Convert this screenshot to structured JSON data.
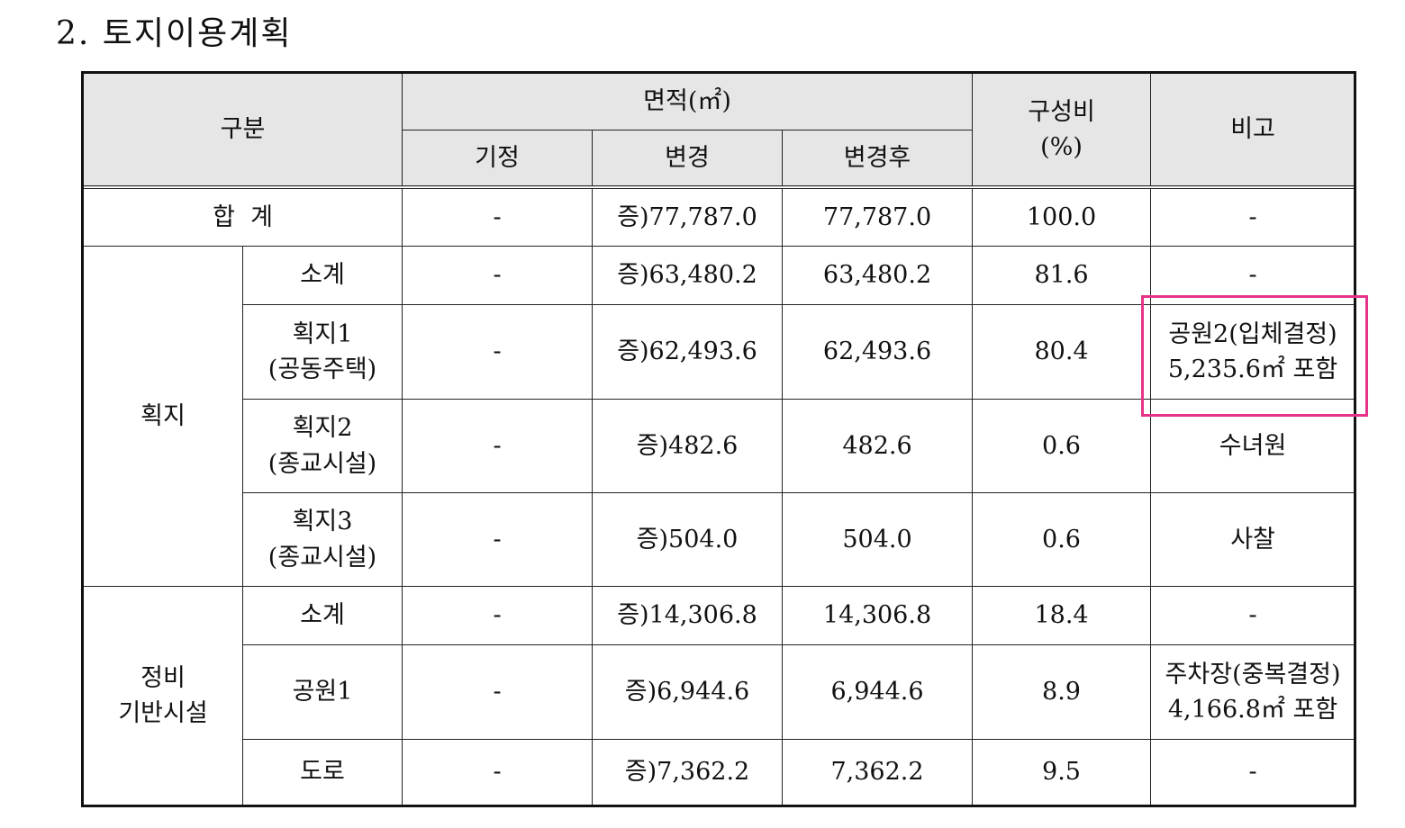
{
  "title": "2. 토지이용계획",
  "header": {
    "category": "구분",
    "area": "면적(㎡)",
    "existing": "기정",
    "change": "변경",
    "after": "변경후",
    "ratio": "구성비\n(%)",
    "remarks": "비고"
  },
  "total": {
    "label": "합  계",
    "existing": "-",
    "change": "증)77,787.0",
    "after": "77,787.0",
    "ratio": "100.0",
    "remarks": "-"
  },
  "lots": {
    "group": "획지",
    "rows": [
      {
        "name": "소계",
        "existing": "-",
        "change": "증)63,480.2",
        "after": "63,480.2",
        "ratio": "81.6",
        "remarks": "-"
      },
      {
        "name": "획지1\n(공동주택)",
        "existing": "-",
        "change": "증)62,493.6",
        "after": "62,493.6",
        "ratio": "80.4",
        "remarks": "공원2(입체결정)\n5,235.6㎡ 포함"
      },
      {
        "name": "획지2\n(종교시설)",
        "existing": "-",
        "change": "증)482.6",
        "after": "482.6",
        "ratio": "0.6",
        "remarks": "수녀원"
      },
      {
        "name": "획지3\n(종교시설)",
        "existing": "-",
        "change": "증)504.0",
        "after": "504.0",
        "ratio": "0.6",
        "remarks": "사찰"
      }
    ]
  },
  "infra": {
    "group": "정비\n기반시설",
    "rows": [
      {
        "name": "소계",
        "existing": "-",
        "change": "증)14,306.8",
        "after": "14,306.8",
        "ratio": "18.4",
        "remarks": "-"
      },
      {
        "name": "공원1",
        "existing": "-",
        "change": "증)6,944.6",
        "after": "6,944.6",
        "ratio": "8.9",
        "remarks": "주차장(중복결정)\n4,166.8㎡ 포함"
      },
      {
        "name": "도로",
        "existing": "-",
        "change": "증)7,362.2",
        "after": "7,362.2",
        "ratio": "9.5",
        "remarks": "-"
      }
    ]
  },
  "colors": {
    "highlight": "#e5338a",
    "header_bg": "#e6e6e6"
  }
}
